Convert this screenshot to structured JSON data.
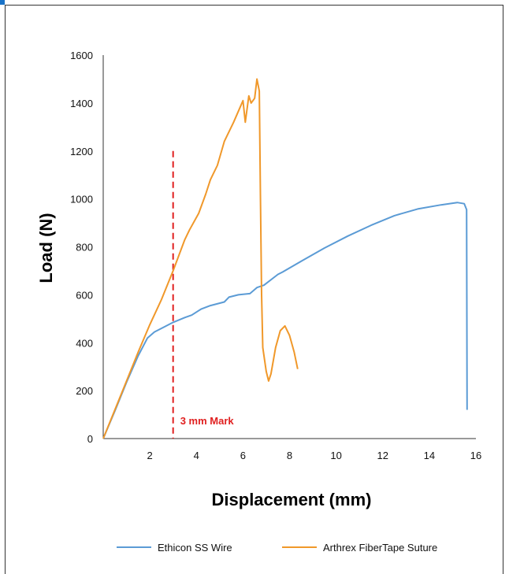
{
  "chart_data": {
    "type": "line",
    "xlabel": "Displacement (mm)",
    "ylabel": "Load (N)",
    "xlim": [
      0,
      16
    ],
    "ylim": [
      0,
      1600
    ],
    "x_ticks": [
      0,
      2,
      4,
      6,
      8,
      10,
      12,
      14,
      16
    ],
    "x_tick_labels": [
      "",
      "2",
      "4",
      "6",
      "8",
      "10",
      "12",
      "14",
      "16"
    ],
    "y_ticks": [
      0,
      200,
      400,
      600,
      800,
      1000,
      1200,
      1400,
      1600
    ],
    "y_tick_labels": [
      "0",
      "200",
      "400",
      "600",
      "800",
      "1000",
      "1200",
      "1400",
      "1600"
    ],
    "grid": false,
    "legend_position": "bottom",
    "series": [
      {
        "name": "Ethicon SS Wire",
        "color": "#5b9bd5",
        "points": [
          [
            0.0,
            0
          ],
          [
            0.5,
            115
          ],
          [
            1.0,
            235
          ],
          [
            1.5,
            345
          ],
          [
            1.9,
            420
          ],
          [
            2.2,
            445
          ],
          [
            2.6,
            465
          ],
          [
            3.0,
            485
          ],
          [
            3.5,
            505
          ],
          [
            3.8,
            515
          ],
          [
            4.2,
            540
          ],
          [
            4.6,
            555
          ],
          [
            5.2,
            570
          ],
          [
            5.4,
            590
          ],
          [
            5.8,
            600
          ],
          [
            6.3,
            605
          ],
          [
            6.6,
            630
          ],
          [
            6.9,
            640
          ],
          [
            7.5,
            685
          ],
          [
            7.7,
            695
          ],
          [
            8.5,
            740
          ],
          [
            9.5,
            795
          ],
          [
            10.5,
            845
          ],
          [
            11.5,
            890
          ],
          [
            12.5,
            930
          ],
          [
            13.5,
            958
          ],
          [
            14.5,
            975
          ],
          [
            15.2,
            985
          ],
          [
            15.5,
            980
          ],
          [
            15.6,
            955
          ],
          [
            15.62,
            120
          ]
        ]
      },
      {
        "name": "Arthrex FiberTape Suture",
        "color": "#f0982a",
        "points": [
          [
            0.0,
            0
          ],
          [
            0.5,
            120
          ],
          [
            1.0,
            240
          ],
          [
            1.5,
            360
          ],
          [
            2.0,
            475
          ],
          [
            2.5,
            580
          ],
          [
            3.0,
            700
          ],
          [
            3.5,
            830
          ],
          [
            3.7,
            870
          ],
          [
            4.1,
            940
          ],
          [
            4.4,
            1020
          ],
          [
            4.6,
            1080
          ],
          [
            4.9,
            1140
          ],
          [
            5.2,
            1240
          ],
          [
            5.6,
            1320
          ],
          [
            6.0,
            1410
          ],
          [
            6.1,
            1320
          ],
          [
            6.25,
            1430
          ],
          [
            6.35,
            1400
          ],
          [
            6.5,
            1420
          ],
          [
            6.6,
            1500
          ],
          [
            6.7,
            1450
          ],
          [
            6.75,
            1020
          ],
          [
            6.8,
            600
          ],
          [
            6.85,
            380
          ],
          [
            7.0,
            280
          ],
          [
            7.1,
            240
          ],
          [
            7.2,
            270
          ],
          [
            7.4,
            380
          ],
          [
            7.6,
            450
          ],
          [
            7.8,
            470
          ],
          [
            8.0,
            430
          ],
          [
            8.2,
            360
          ],
          [
            8.35,
            290
          ]
        ]
      }
    ],
    "annotations": [
      {
        "text": "3 mm Mark",
        "x": 3,
        "ymax": 1200,
        "color": "#e02020"
      }
    ]
  }
}
